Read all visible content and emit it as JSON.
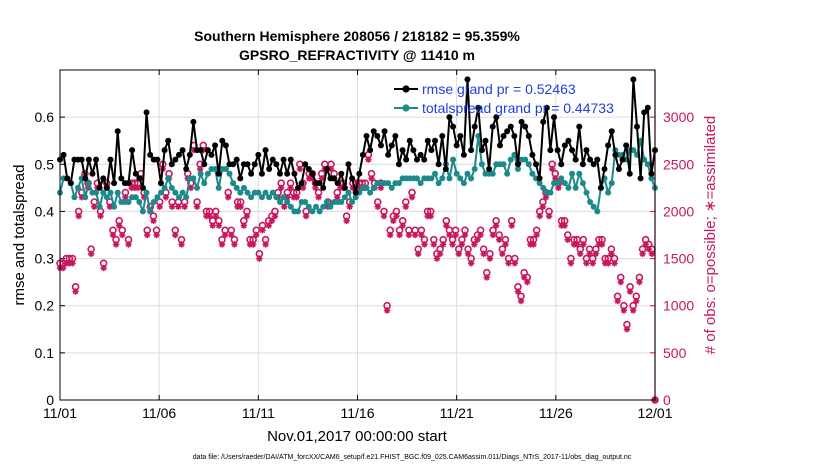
{
  "chart_data": {
    "type": "line",
    "title_line1": "Southern Hemisphere 208056 / 218182 = 95.359%",
    "title_line2": "GPSRO_REFRACTIVITY @ 11410 m",
    "xlabel": "Nov.01,2017 00:00:00 start",
    "ylabel_left": "rmse and totalspread",
    "ylabel_right": "# of obs: o=possible; ∗=assimilated",
    "footnote": "data file: /Users/raeder/DAI/ATM_forcXX/CAM6_setup/f.e21.FHIST_BGC.f09_025.CAM6assim.011/Diags_NTrS_2017-11/obs_diag_output.nc",
    "xlim": [
      0,
      30
    ],
    "ylim_left": [
      0,
      0.7
    ],
    "ylim_right": [
      0,
      3500
    ],
    "x_ticks": [
      0,
      5,
      10,
      15,
      20,
      25,
      30
    ],
    "x_tick_labels": [
      "11/01",
      "11/06",
      "11/11",
      "11/16",
      "11/21",
      "11/26",
      "12/01"
    ],
    "y_ticks_left": [
      0,
      0.1,
      0.2,
      0.3,
      0.4,
      0.5,
      0.6
    ],
    "y_tick_labels_left": [
      "0",
      "0.1",
      "0.2",
      "0.3",
      "0.4",
      "0.5",
      "0.6"
    ],
    "y_ticks_right": [
      0,
      500,
      1000,
      1500,
      2000,
      2500,
      3000
    ],
    "y_tick_labels_right": [
      "0",
      "500",
      "1000",
      "1500",
      "2000",
      "2500",
      "3000"
    ],
    "grid": true,
    "legend_position": "top-right",
    "colors": {
      "rmse": "#000000",
      "spread": "#1a8a8a",
      "obs": "#c8175e",
      "legend_text": "#1f3fe0"
    },
    "series": [
      {
        "name": "rmse",
        "label": "rmse grand pr = 0.52463",
        "values": [
          0.51,
          0.52,
          0.47,
          0.46,
          0.51,
          0.51,
          0.51,
          0.47,
          0.51,
          0.48,
          0.51,
          0.45,
          0.47,
          0.45,
          0.51,
          0.46,
          0.57,
          0.47,
          0.46,
          0.46,
          0.53,
          0.48,
          0.47,
          0.45,
          0.61,
          0.52,
          0.51,
          0.51,
          0.46,
          0.53,
          0.55,
          0.5,
          0.51,
          0.52,
          0.53,
          0.49,
          0.52,
          0.59,
          0.53,
          0.53,
          0.5,
          0.53,
          0.52,
          0.54,
          0.48,
          0.55,
          0.54,
          0.5,
          0.5,
          0.51,
          0.47,
          0.5,
          0.5,
          0.48,
          0.5,
          0.52,
          0.48,
          0.53,
          0.49,
          0.51,
          0.5,
          0.48,
          0.51,
          0.48,
          0.51,
          0.48,
          0.45,
          0.46,
          0.5,
          0.49,
          0.48,
          0.46,
          0.46,
          0.45,
          0.49,
          0.47,
          0.47,
          0.46,
          0.48,
          0.45,
          0.5,
          0.47,
          0.44,
          0.48,
          0.52,
          0.56,
          0.53,
          0.57,
          0.56,
          0.54,
          0.57,
          0.52,
          0.54,
          0.56,
          0.5,
          0.53,
          0.51,
          0.55,
          0.53,
          0.51,
          0.52,
          0.51,
          0.55,
          0.53,
          0.55,
          0.5,
          0.56,
          0.49,
          0.6,
          0.58,
          0.54,
          0.56,
          0.52,
          0.68,
          0.53,
          0.58,
          0.62,
          0.53,
          0.55,
          0.49,
          0.58,
          0.6,
          0.54,
          0.56,
          0.57,
          0.58,
          0.56,
          0.5,
          0.59,
          0.58,
          0.56,
          0.52,
          0.5,
          0.47,
          0.59,
          0.62,
          0.53,
          0.6,
          0.53,
          0.5,
          0.54,
          0.55,
          0.53,
          0.51,
          0.58,
          0.5,
          0.53,
          0.51,
          0.5,
          0.51,
          0.45,
          0.49,
          0.54,
          0.57,
          0.52,
          0.49,
          0.51,
          0.54,
          0.48,
          0.68,
          0.58,
          0.47,
          0.61,
          0.62,
          0.48,
          0.53
        ]
      },
      {
        "name": "totalspread",
        "label": "totalspread grand pr = 0.44733",
        "values": [
          0.44,
          0.47,
          0.47,
          0.46,
          0.43,
          0.45,
          0.47,
          0.43,
          0.46,
          0.44,
          0.44,
          0.41,
          0.44,
          0.43,
          0.44,
          0.41,
          0.44,
          0.42,
          0.42,
          0.42,
          0.43,
          0.43,
          0.42,
          0.4,
          0.44,
          0.4,
          0.42,
          0.43,
          0.44,
          0.45,
          0.47,
          0.45,
          0.44,
          0.43,
          0.44,
          0.43,
          0.47,
          0.47,
          0.45,
          0.48,
          0.46,
          0.48,
          0.49,
          0.49,
          0.45,
          0.49,
          0.49,
          0.48,
          0.46,
          0.45,
          0.44,
          0.45,
          0.44,
          0.43,
          0.44,
          0.44,
          0.43,
          0.44,
          0.43,
          0.44,
          0.43,
          0.42,
          0.43,
          0.42,
          0.41,
          0.4,
          0.4,
          0.42,
          0.42,
          0.41,
          0.4,
          0.41,
          0.4,
          0.41,
          0.42,
          0.41,
          0.42,
          0.42,
          0.42,
          0.43,
          0.44,
          0.42,
          0.43,
          0.44,
          0.45,
          0.45,
          0.44,
          0.45,
          0.46,
          0.46,
          0.46,
          0.46,
          0.45,
          0.46,
          0.46,
          0.47,
          0.47,
          0.47,
          0.47,
          0.47,
          0.46,
          0.47,
          0.47,
          0.47,
          0.48,
          0.46,
          0.47,
          0.5,
          0.47,
          0.51,
          0.48,
          0.47,
          0.46,
          0.48,
          0.47,
          0.49,
          0.56,
          0.5,
          0.48,
          0.48,
          0.48,
          0.5,
          0.5,
          0.5,
          0.48,
          0.51,
          0.52,
          0.49,
          0.51,
          0.51,
          0.5,
          0.48,
          0.47,
          0.46,
          0.45,
          0.44,
          0.44,
          0.46,
          0.46,
          0.47,
          0.46,
          0.45,
          0.48,
          0.45,
          0.48,
          0.46,
          0.44,
          0.42,
          0.41,
          0.4,
          0.45,
          0.47,
          0.44,
          0.46,
          0.53,
          0.52,
          0.52,
          0.51,
          0.53,
          0.53,
          0.52,
          0.55,
          0.51,
          0.5,
          0.47,
          0.45
        ]
      },
      {
        "name": "possible",
        "marker": "o",
        "values": [
          1450,
          1450,
          1500,
          1500,
          1500,
          1200,
          2000,
          2200,
          2400,
          2300,
          1600,
          2100,
          2300,
          2000,
          1450,
          2300,
          2100,
          1800,
          1700,
          1900,
          1800,
          2200,
          1700,
          2300,
          2300,
          2300,
          2400,
          2200,
          1800,
          2050,
          1950,
          1800,
          2100,
          2500,
          2200,
          2400,
          2100,
          1800,
          2100,
          1700,
          2100,
          2400,
          2300,
          2700,
          2100,
          2500,
          2700,
          2000,
          2000,
          1900,
          2000,
          1900,
          1700,
          1800,
          2200,
          1800,
          1700,
          2100,
          2100,
          1900,
          2000,
          1700,
          1700,
          1800,
          1550,
          1850,
          1700,
          1900,
          1950,
          2000,
          2200,
          2300,
          2100,
          2200,
          2300,
          2200,
          2200,
          2500,
          2300,
          2000,
          2400,
          2400,
          2300,
          2200,
          2400,
          2500,
          2100,
          2500,
          2400,
          2200,
          2300,
          2300,
          1950,
          2100,
          2300,
          2300,
          2300,
          2300,
          2300,
          2600,
          2400,
          2300,
          2100,
          2300,
          2000,
          1000,
          1800,
          1950,
          2000,
          1800,
          1900,
          2100,
          1800,
          2200,
          1800,
          1600,
          1800,
          1700,
          2000,
          2000,
          1700,
          1550,
          1600,
          1700,
          1900,
          1800,
          1700,
          1800,
          1600,
          1700,
          1800,
          1600,
          1500,
          1700,
          1750,
          1800,
          1600,
          1350,
          1550,
          1800,
          1900,
          1750,
          1600,
          1700,
          1500,
          1900,
          1500,
          1200,
          1100,
          1350,
          1300,
          1700,
          1700,
          1800,
          2000,
          2100,
          2200,
          2000,
          2500,
          2400,
          2300,
          1900,
          1900,
          1750,
          1500,
          1700,
          1700,
          1600,
          1700,
          1500,
          1600,
          1500,
          1600,
          1700,
          1700,
          1500,
          1500,
          1600,
          1500,
          1100,
          1300,
          1000,
          800,
          1200,
          1000,
          1100,
          1300,
          1600,
          1700,
          1650,
          1600,
          0
        ]
      },
      {
        "name": "assimilated",
        "marker": "*",
        "values": [
          1400,
          1400,
          1450,
          1450,
          1450,
          1150,
          1950,
          2150,
          2350,
          2250,
          1550,
          2050,
          2250,
          1950,
          1400,
          2250,
          2050,
          1750,
          1650,
          1850,
          1750,
          2150,
          1650,
          2250,
          2250,
          2250,
          2350,
          2150,
          1750,
          2000,
          1900,
          1750,
          2050,
          2450,
          2150,
          2350,
          2050,
          1750,
          2050,
          1650,
          2050,
          2350,
          2250,
          2650,
          2050,
          2450,
          2650,
          1950,
          1950,
          1850,
          1950,
          1850,
          1650,
          1750,
          2150,
          1750,
          1650,
          2050,
          2050,
          1850,
          1950,
          1650,
          1650,
          1750,
          1500,
          1800,
          1650,
          1850,
          1900,
          1950,
          2150,
          2250,
          2050,
          2150,
          2250,
          2150,
          2150,
          2450,
          2250,
          1950,
          2350,
          2350,
          2250,
          2150,
          2350,
          2450,
          2050,
          2450,
          2350,
          2150,
          2250,
          2250,
          1900,
          2050,
          2250,
          2250,
          2250,
          2250,
          2250,
          2550,
          2350,
          2250,
          2050,
          2250,
          1950,
          950,
          1750,
          1900,
          1950,
          1750,
          1850,
          2050,
          1750,
          2150,
          1750,
          1550,
          1750,
          1650,
          1950,
          1950,
          1650,
          1500,
          1550,
          1650,
          1850,
          1750,
          1650,
          1750,
          1550,
          1650,
          1750,
          1550,
          1450,
          1650,
          1700,
          1750,
          1550,
          1300,
          1500,
          1750,
          1850,
          1700,
          1550,
          1650,
          1450,
          1850,
          1450,
          1150,
          1050,
          1300,
          1250,
          1650,
          1650,
          1750,
          1950,
          2050,
          2150,
          1950,
          2450,
          2350,
          2250,
          1850,
          1850,
          1700,
          1450,
          1650,
          1650,
          1550,
          1650,
          1450,
          1550,
          1450,
          1550,
          1650,
          1650,
          1450,
          1450,
          1550,
          1450,
          1050,
          1250,
          950,
          750,
          1150,
          950,
          1050,
          1250,
          1550,
          1650,
          1600,
          1550,
          0
        ]
      }
    ]
  }
}
